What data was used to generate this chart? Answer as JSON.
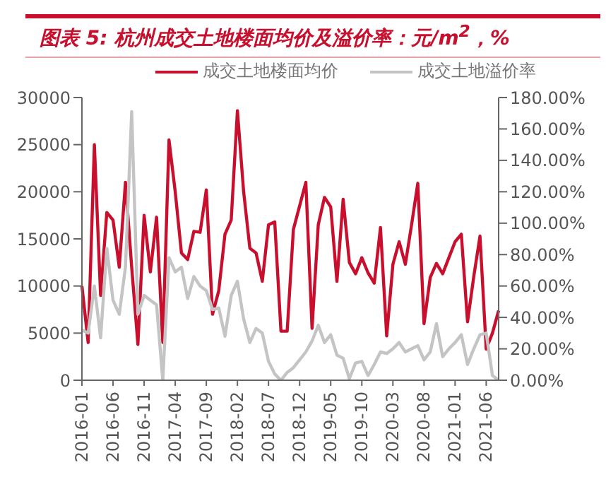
{
  "chart_data": {
    "type": "line",
    "title": "图表 5: 杭州成交土地楼面均价及溢价率：元/m$^{2}$，%",
    "categories": [
      "2016-01",
      null,
      null,
      null,
      null,
      "2016-06",
      null,
      null,
      null,
      null,
      "2016-11",
      null,
      null,
      null,
      null,
      "2017-04",
      null,
      null,
      null,
      null,
      "2017-09",
      null,
      null,
      null,
      null,
      "2018-02",
      null,
      null,
      null,
      null,
      "2018-07",
      null,
      null,
      null,
      null,
      "2018-12",
      null,
      null,
      null,
      null,
      "2019-05",
      null,
      null,
      null,
      null,
      "2019-10",
      null,
      null,
      null,
      null,
      "2020-03",
      null,
      null,
      null,
      null,
      "2020-08",
      null,
      null,
      null,
      null,
      "2021-01",
      null,
      null,
      null,
      null,
      "2021-06",
      null,
      null
    ],
    "series": [
      {
        "name": "成交土地楼面均价",
        "color": "#c8102e",
        "values": [
          10000,
          4000,
          25000,
          9000,
          17800,
          17000,
          12000,
          21000,
          12000,
          3800,
          17500,
          11500,
          17300,
          4000,
          25500,
          20000,
          13500,
          12800,
          15800,
          15700,
          20200,
          7000,
          9500,
          15500,
          17000,
          28600,
          20000,
          14000,
          13500,
          10500,
          16500,
          16800,
          5200,
          5200,
          16000,
          18500,
          21000,
          5500,
          16500,
          19400,
          18400,
          10500,
          19200,
          12500,
          11300,
          13000,
          11400,
          10300,
          16200,
          4700,
          12300,
          14700,
          12300,
          16500,
          20900,
          6000,
          10900,
          12400,
          11300,
          13000,
          14700,
          15500,
          6200,
          11000,
          15300,
          3300,
          5000,
          7400
        ]
      },
      {
        "name": "成交土地溢价率",
        "color": "#c4c4c4",
        "axis": "y2",
        "values": [
          32,
          30,
          60,
          27,
          84,
          51,
          42,
          72,
          171,
          42,
          54,
          51,
          48,
          0,
          78,
          69,
          72,
          52,
          66,
          60,
          57,
          45,
          46,
          28,
          54,
          63,
          39,
          24,
          33,
          30,
          12,
          4,
          0,
          5,
          8,
          13,
          18,
          25,
          35,
          24,
          29,
          16,
          14,
          1,
          11,
          12,
          3,
          10,
          18,
          17,
          20,
          24,
          18,
          20,
          22,
          13,
          18,
          36,
          15,
          20,
          24,
          29,
          10,
          20,
          29,
          30,
          3,
          0
        ]
      }
    ],
    "ylim": [
      0,
      30000
    ],
    "yticks": [
      0,
      5000,
      10000,
      15000,
      20000,
      25000,
      30000
    ],
    "y2lim": [
      0,
      180
    ],
    "y2ticks": [
      {
        "value": 0,
        "label": "0.00%"
      },
      {
        "value": 20,
        "label": "20.00%"
      },
      {
        "value": 40,
        "label": "40.00%"
      },
      {
        "value": 60,
        "label": "60.00%"
      },
      {
        "value": 80,
        "label": "80.00%"
      },
      {
        "value": 100,
        "label": "100.00%"
      },
      {
        "value": 120,
        "label": "120.00%"
      },
      {
        "value": 140,
        "label": "140.00%"
      },
      {
        "value": 160,
        "label": "160.00%"
      },
      {
        "value": 180,
        "label": "180.00%"
      }
    ],
    "legend": "top",
    "grid": false,
    "marker": "none",
    "line_style": "solid"
  }
}
